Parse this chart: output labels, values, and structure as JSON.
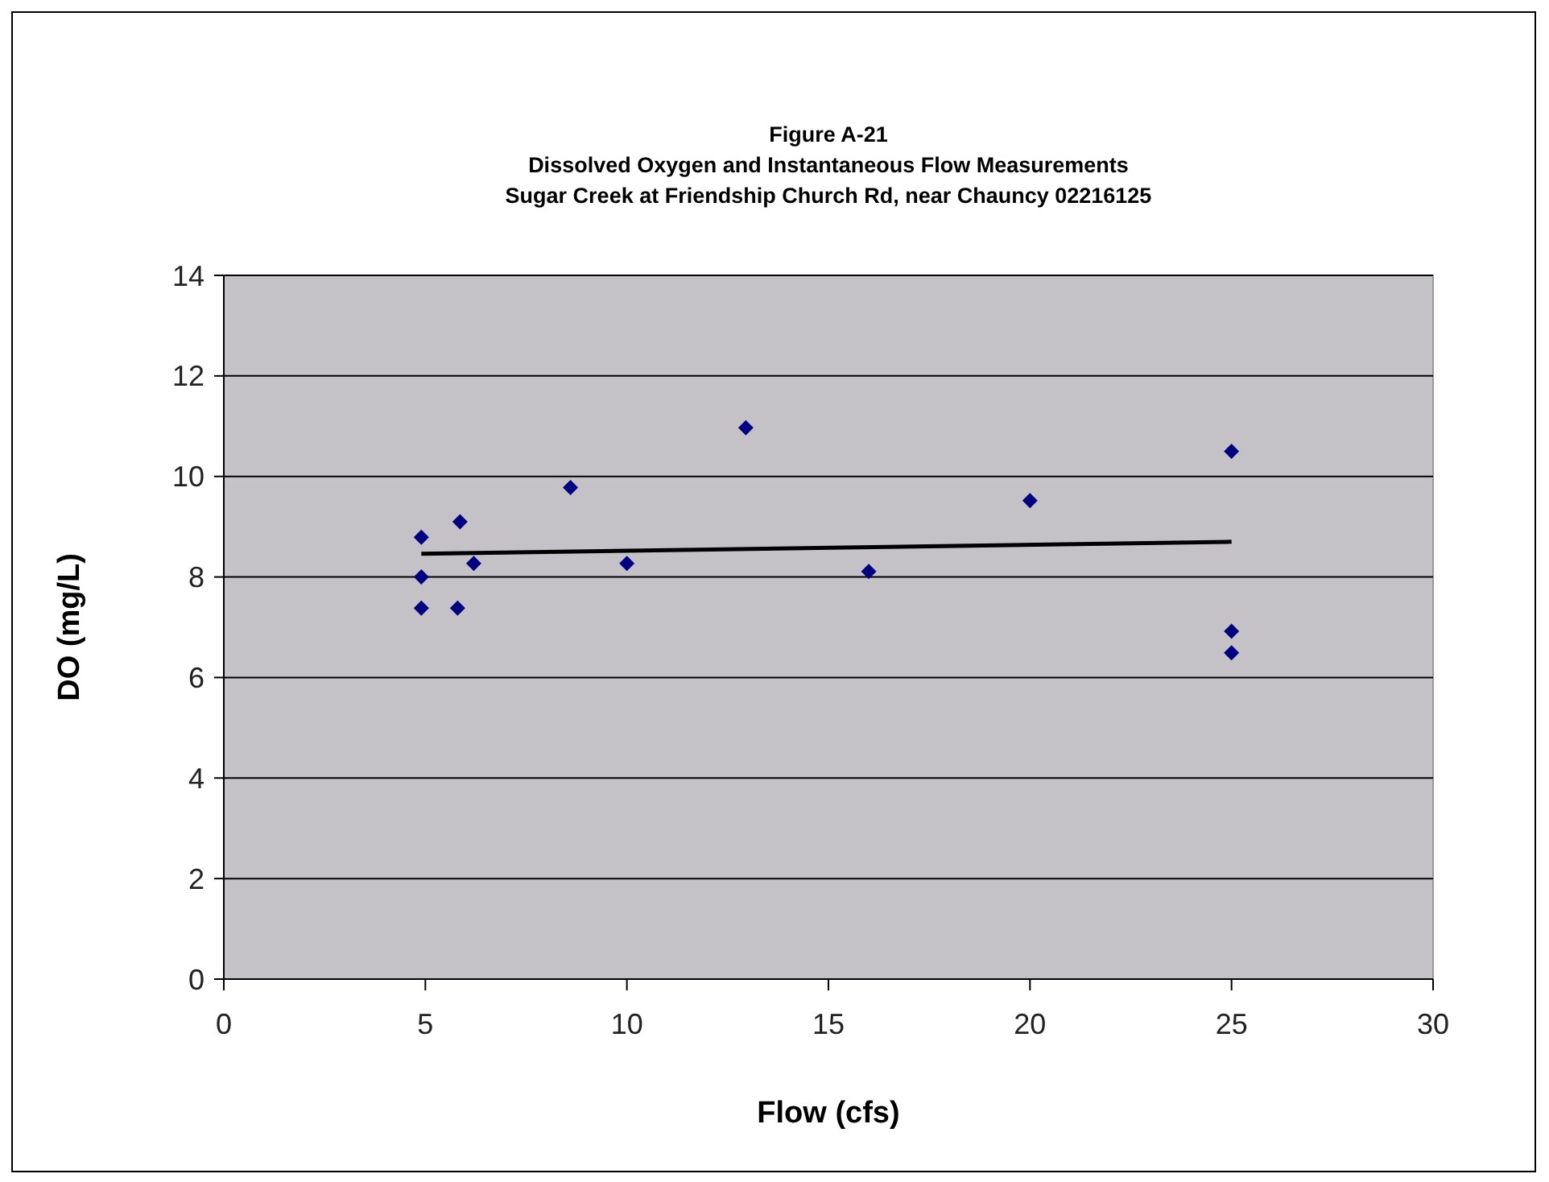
{
  "chart_data": {
    "type": "scatter",
    "title": "Figure A-21\nDissolved Oxygen and Instantaneous Flow Measurements\nSugar Creek at Friendship Church Rd, near Chauncy 02216125",
    "xlabel": "Flow (cfs)",
    "ylabel": "DO (mg/L)",
    "xlim": [
      0,
      30
    ],
    "xticks": [
      0,
      5,
      10,
      15,
      20,
      25,
      30
    ],
    "ylim": [
      0,
      14
    ],
    "yticks": [
      0,
      2,
      4,
      6,
      8,
      10,
      12,
      14
    ],
    "grid": "y",
    "marker": "diamond",
    "series": [
      {
        "color": "#000080",
        "x": [
          4.9,
          4.9,
          4.9,
          5.86,
          5.8,
          6.2,
          8.6,
          10,
          12.95,
          16,
          20,
          25,
          25,
          25
        ],
        "values": [
          8.79,
          8.0,
          7.38,
          9.1,
          7.38,
          8.27,
          9.78,
          8.27,
          10.97,
          8.11,
          9.52,
          10.5,
          6.92,
          6.49
        ]
      },
      {
        "type": "line",
        "color": "#000000",
        "line_style": "solid",
        "marker": "none",
        "x": [
          4.9,
          25
        ],
        "values": [
          8.46,
          8.7
        ]
      }
    ]
  }
}
